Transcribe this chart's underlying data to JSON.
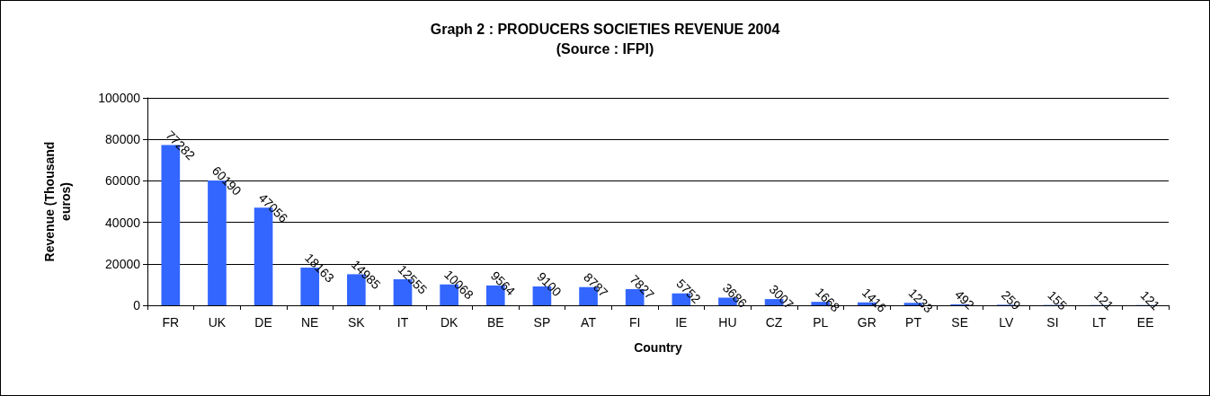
{
  "chart_data": {
    "type": "bar",
    "title": "Graph 2 : PRODUCERS SOCIETIES REVENUE 2004",
    "subtitle": "(Source : IFPI)",
    "xlabel": "Country",
    "ylabel": "Revenue (Thousand euros)",
    "categories": [
      "FR",
      "UK",
      "DE",
      "NE",
      "SK",
      "IT",
      "DK",
      "BE",
      "SP",
      "AT",
      "FI",
      "IE",
      "HU",
      "CZ",
      "PL",
      "GR",
      "PT",
      "SE",
      "LV",
      "SI",
      "LT",
      "EE"
    ],
    "values": [
      77282,
      60190,
      47056,
      18163,
      14985,
      12555,
      10068,
      9564,
      9100,
      8787,
      7827,
      5752,
      3686,
      3007,
      1668,
      1416,
      1233,
      492,
      259,
      155,
      121,
      121
    ],
    "color": "#3366ff",
    "ylim": [
      0,
      100000
    ],
    "yticks": [
      0,
      20000,
      40000,
      60000,
      80000,
      100000
    ],
    "grid": "y",
    "data_labels": true
  }
}
